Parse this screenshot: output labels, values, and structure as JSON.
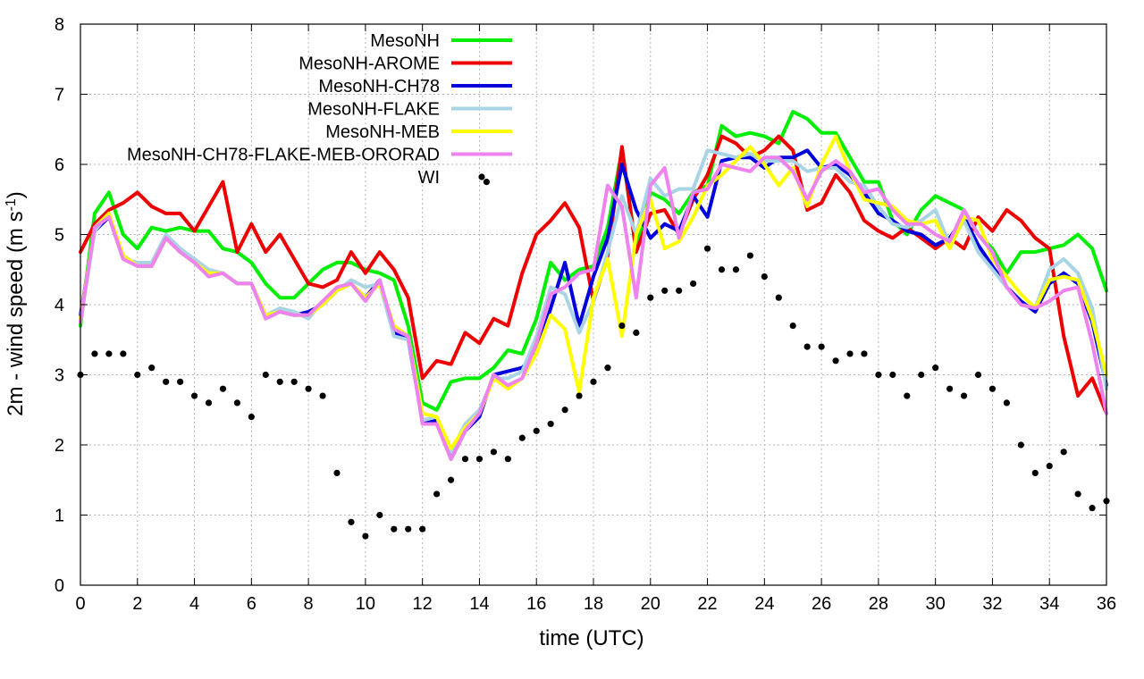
{
  "chart_data": {
    "type": "line",
    "title": "",
    "xlabel": "time (UTC)",
    "ylabel_main": "2m - wind speed  (m s",
    "ylabel_sup": "-1",
    "ylabel_close": ")",
    "xlim": [
      0,
      36
    ],
    "ylim": [
      0,
      8
    ],
    "xticks": [
      0,
      2,
      4,
      6,
      8,
      10,
      12,
      14,
      16,
      18,
      20,
      22,
      24,
      26,
      28,
      30,
      32,
      34,
      36
    ],
    "yticks": [
      0,
      1,
      2,
      3,
      4,
      5,
      6,
      7,
      8
    ],
    "grid": true,
    "legend_position": "top-left",
    "x": [
      0,
      0.5,
      1,
      1.5,
      2,
      2.5,
      3,
      3.5,
      4,
      4.5,
      5,
      5.5,
      6,
      6.5,
      7,
      7.5,
      8,
      8.5,
      9,
      9.5,
      10,
      10.5,
      11,
      11.5,
      12,
      12.5,
      13,
      13.5,
      14,
      14.5,
      15,
      15.5,
      16,
      16.5,
      17,
      17.5,
      18,
      18.5,
      19,
      19.5,
      20,
      20.5,
      21,
      21.5,
      22,
      22.5,
      23,
      23.5,
      24,
      24.5,
      25,
      25.5,
      26,
      26.5,
      27,
      27.5,
      28,
      28.5,
      29,
      29.5,
      30,
      30.5,
      31,
      31.5,
      32,
      32.5,
      33,
      33.5,
      34,
      34.5,
      35,
      35.5,
      36
    ],
    "series": [
      {
        "name": "MesoNH",
        "color": "#00ee00",
        "style": "line",
        "values": [
          3.7,
          5.3,
          5.6,
          5.0,
          4.8,
          5.1,
          5.05,
          5.1,
          5.05,
          5.05,
          4.8,
          4.75,
          4.6,
          4.3,
          4.1,
          4.1,
          4.3,
          4.5,
          4.6,
          4.6,
          4.5,
          4.45,
          4.35,
          3.7,
          2.6,
          2.5,
          2.9,
          2.95,
          2.95,
          3.1,
          3.35,
          3.3,
          3.8,
          4.6,
          4.35,
          4.5,
          4.55,
          5.1,
          6.2,
          4.8,
          5.6,
          5.5,
          5.3,
          5.6,
          5.7,
          6.55,
          6.4,
          6.45,
          6.4,
          6.3,
          6.75,
          6.65,
          6.45,
          6.45,
          6.1,
          5.75,
          5.75,
          5.2,
          5.0,
          5.35,
          5.55,
          5.45,
          5.35,
          5.0,
          4.8,
          4.45,
          4.75,
          4.75,
          4.8,
          4.85,
          5.0,
          4.8,
          4.2
        ]
      },
      {
        "name": "MesoNH-AROME",
        "color": "#ee0000",
        "style": "line",
        "values": [
          4.75,
          5.15,
          5.35,
          5.45,
          5.6,
          5.4,
          5.3,
          5.3,
          5.05,
          5.4,
          5.75,
          4.75,
          5.15,
          4.75,
          5.0,
          4.65,
          4.3,
          4.25,
          4.35,
          4.75,
          4.45,
          4.75,
          4.5,
          4.1,
          2.95,
          3.2,
          3.15,
          3.6,
          3.45,
          3.8,
          3.7,
          4.45,
          5.0,
          5.2,
          5.45,
          5.1,
          4.05,
          4.7,
          6.25,
          4.75,
          5.3,
          5.35,
          5.0,
          5.5,
          5.85,
          6.4,
          6.3,
          6.1,
          6.2,
          6.4,
          6.2,
          5.35,
          5.45,
          5.85,
          5.6,
          5.2,
          5.05,
          4.95,
          5.1,
          4.95,
          4.8,
          4.95,
          4.8,
          5.25,
          5.05,
          5.35,
          5.2,
          4.95,
          4.8,
          3.55,
          2.7,
          2.95,
          2.45
        ]
      },
      {
        "name": "MesoNH-CH78",
        "color": "#0000dd",
        "style": "line",
        "values": [
          3.85,
          5.05,
          5.25,
          4.7,
          4.55,
          4.55,
          4.95,
          4.75,
          4.65,
          4.45,
          4.45,
          4.3,
          4.3,
          3.85,
          3.9,
          3.85,
          3.9,
          4.0,
          4.2,
          4.3,
          4.1,
          4.35,
          3.6,
          3.5,
          2.35,
          2.35,
          1.8,
          2.2,
          2.4,
          3.0,
          3.05,
          3.1,
          3.3,
          3.95,
          4.6,
          3.7,
          4.4,
          4.95,
          6.0,
          5.35,
          4.95,
          5.15,
          5.05,
          5.55,
          5.25,
          6.05,
          6.1,
          6.1,
          5.95,
          6.1,
          6.1,
          6.2,
          5.95,
          6.0,
          5.85,
          5.6,
          5.3,
          5.2,
          5.05,
          5.0,
          4.85,
          4.95,
          5.25,
          4.85,
          4.55,
          4.25,
          4.05,
          3.9,
          4.3,
          4.45,
          4.3,
          3.75,
          2.85
        ]
      },
      {
        "name": "MesoNH-FLAKE",
        "color": "#a8d4e6",
        "style": "line",
        "values": [
          3.75,
          5.05,
          5.3,
          4.65,
          4.6,
          4.6,
          5.0,
          4.8,
          4.65,
          4.5,
          4.45,
          4.3,
          4.3,
          3.85,
          3.95,
          3.9,
          3.8,
          4.05,
          4.2,
          4.35,
          4.25,
          4.3,
          3.55,
          3.5,
          2.35,
          2.4,
          1.9,
          2.3,
          2.5,
          2.95,
          2.95,
          3.05,
          3.55,
          4.25,
          4.15,
          3.6,
          4.05,
          4.75,
          5.55,
          5.0,
          5.8,
          5.55,
          5.65,
          5.65,
          6.2,
          6.15,
          6.1,
          6.15,
          6.05,
          6.05,
          6.05,
          5.9,
          5.95,
          5.95,
          5.75,
          5.7,
          5.4,
          5.15,
          5.1,
          5.2,
          5.35,
          4.85,
          5.2,
          4.75,
          4.5,
          4.25,
          4.0,
          3.95,
          4.5,
          4.65,
          4.45,
          3.95,
          2.8
        ]
      },
      {
        "name": "MesoNH-MEB",
        "color": "#ffff00",
        "style": "line",
        "values": [
          3.8,
          5.1,
          5.3,
          4.7,
          4.55,
          4.55,
          4.95,
          4.75,
          4.6,
          4.45,
          4.45,
          4.3,
          4.3,
          3.85,
          3.9,
          3.85,
          3.85,
          4.0,
          4.2,
          4.3,
          4.1,
          4.3,
          3.7,
          3.55,
          2.45,
          2.4,
          1.95,
          2.25,
          2.45,
          2.95,
          2.8,
          2.95,
          3.3,
          3.85,
          3.65,
          2.75,
          4.1,
          4.65,
          3.55,
          5.0,
          5.5,
          4.8,
          4.9,
          5.25,
          5.7,
          5.85,
          6.05,
          6.25,
          6.0,
          5.7,
          5.95,
          5.4,
          6.0,
          6.4,
          5.9,
          5.5,
          5.45,
          5.4,
          5.2,
          5.15,
          5.2,
          4.8,
          5.25,
          5.2,
          4.65,
          4.4,
          4.15,
          3.95,
          4.35,
          4.4,
          4.35,
          3.8,
          3.0
        ]
      },
      {
        "name": "MesoNH-CH78-FLAKE-MEB-ORORAD",
        "color": "#ee82ee",
        "style": "line",
        "values": [
          3.75,
          5.1,
          5.25,
          4.65,
          4.55,
          4.55,
          4.95,
          4.75,
          4.6,
          4.4,
          4.45,
          4.3,
          4.3,
          3.8,
          3.9,
          3.85,
          3.85,
          4.05,
          4.25,
          4.3,
          4.05,
          4.35,
          3.65,
          3.55,
          2.3,
          2.3,
          1.8,
          2.2,
          2.45,
          3.0,
          2.85,
          2.95,
          3.45,
          4.15,
          4.25,
          4.45,
          4.5,
          5.7,
          5.4,
          4.1,
          5.7,
          5.95,
          4.95,
          5.6,
          5.65,
          6.0,
          5.95,
          5.9,
          6.1,
          6.1,
          5.9,
          5.5,
          5.9,
          6.05,
          5.9,
          5.6,
          5.65,
          5.35,
          5.15,
          5.15,
          5.0,
          4.9,
          5.35,
          5.0,
          4.75,
          4.25,
          4.0,
          3.95,
          4.05,
          4.2,
          4.25,
          3.45,
          2.45
        ]
      },
      {
        "name": "WI",
        "color": "#000000",
        "style": "points",
        "values": [
          3.0,
          3.3,
          3.3,
          3.3,
          3.0,
          3.1,
          2.9,
          2.9,
          2.7,
          2.6,
          2.8,
          2.6,
          2.4,
          3.0,
          2.9,
          2.9,
          2.8,
          2.7,
          1.6,
          0.9,
          0.7,
          1.0,
          0.8,
          0.8,
          0.8,
          1.3,
          1.5,
          1.8,
          1.8,
          1.9,
          1.8,
          2.1,
          2.2,
          2.3,
          2.5,
          2.7,
          2.9,
          3.1,
          3.7,
          3.6,
          4.1,
          4.2,
          4.2,
          4.3,
          4.8,
          4.5,
          4.5,
          4.7,
          4.4,
          4.1,
          3.7,
          3.4,
          3.4,
          3.2,
          3.3,
          3.3,
          3.0,
          3.0,
          2.7,
          3.0,
          3.1,
          2.8,
          2.7,
          3.0,
          2.8,
          2.6,
          2.0,
          1.6,
          1.7,
          1.9,
          1.3,
          1.1,
          1.2
        ]
      }
    ],
    "extra_points": [
      {
        "series": "WI",
        "x": 14.25,
        "y": 5.75
      }
    ]
  }
}
